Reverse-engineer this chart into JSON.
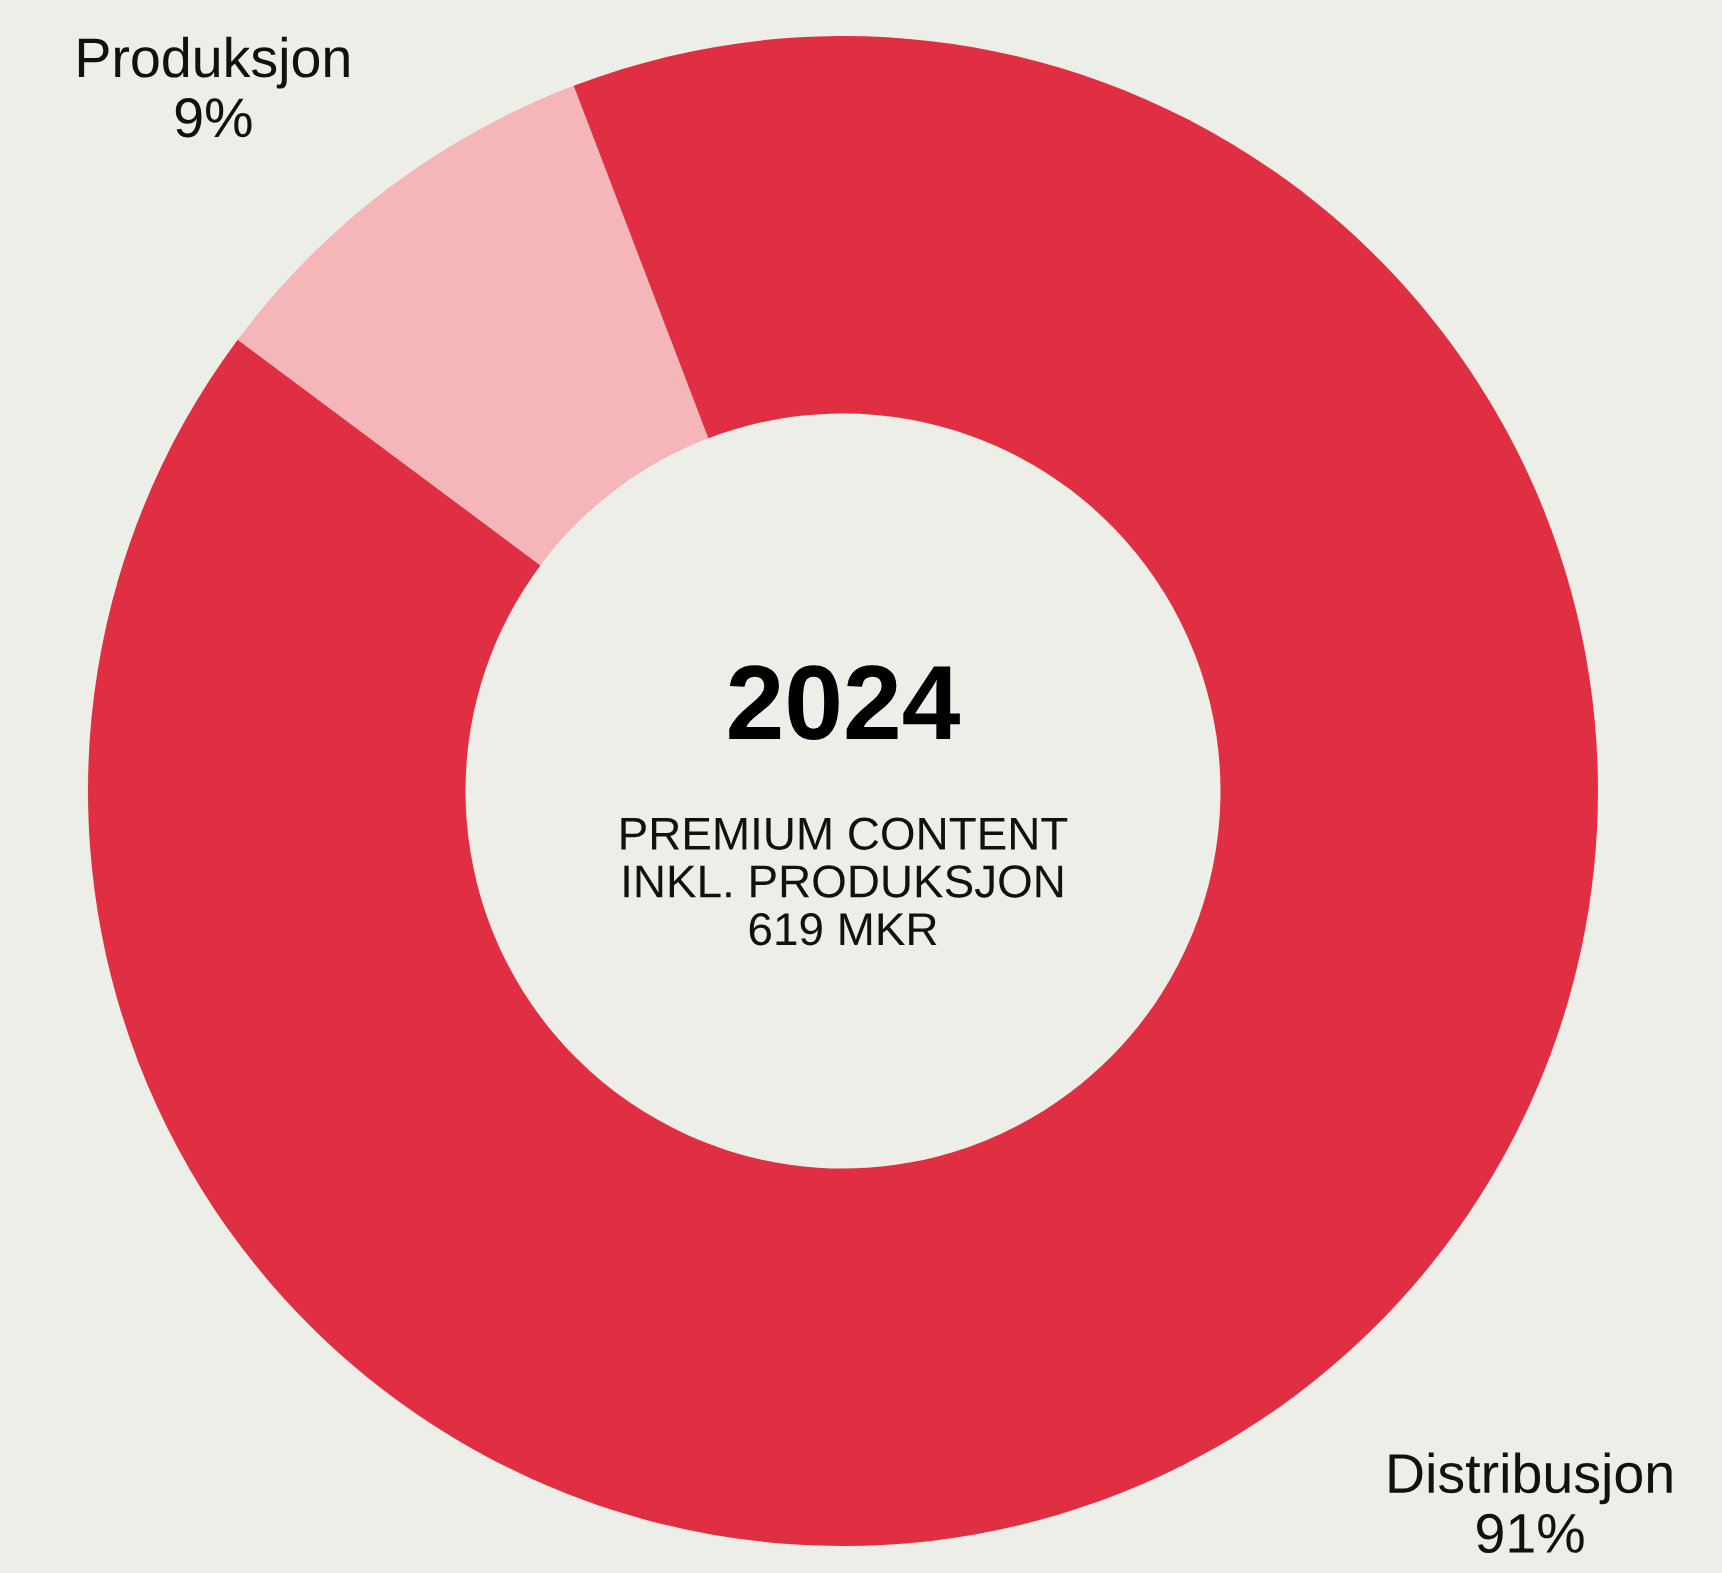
{
  "chart_data": {
    "type": "donut",
    "title": "2024",
    "subtitle": "PREMIUM CONTENT\nINKL. PRODUKSJON\n619 MKR",
    "categories": [
      "Produksjon",
      "Distribusjon"
    ],
    "values": [
      9,
      91
    ],
    "colors": [
      "#f4b6b8",
      "#e02e42"
    ],
    "value_labels": [
      "9%",
      "91%"
    ],
    "legend": false
  }
}
